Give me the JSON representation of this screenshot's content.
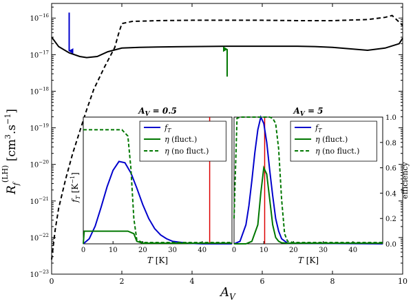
{
  "chart_data": [
    {
      "type": "line",
      "role": "main",
      "xlabel": "A_V",
      "ylabel": "R_f^(LH) [cm^3 . s^-1]",
      "xlim": [
        0,
        10
      ],
      "ylim_log10": [
        -23,
        -15.6
      ],
      "y_scale": "log",
      "x_ticks": [
        0,
        2,
        4,
        6,
        8,
        10
      ],
      "y_ticks_exp": [
        -23,
        -22,
        -21,
        -20,
        -19,
        -18,
        -17,
        -16
      ],
      "grid": false,
      "series": [
        {
          "style": "solid",
          "color": "#000000",
          "x": [
            0,
            0.2,
            0.5,
            0.8,
            1.0,
            1.3,
            1.6,
            2.0,
            2.5,
            3,
            4,
            5,
            6,
            7,
            7.5,
            8,
            8.5,
            9,
            9.5,
            9.9,
            10
          ],
          "y_log10": [
            -16.52,
            -16.78,
            -16.95,
            -17.05,
            -17.08,
            -17.05,
            -16.92,
            -16.82,
            -16.8,
            -16.79,
            -16.78,
            -16.77,
            -16.77,
            -16.77,
            -16.78,
            -16.8,
            -16.84,
            -16.88,
            -16.82,
            -16.7,
            -16.55
          ]
        },
        {
          "style": "dashed",
          "color": "#000000",
          "x": [
            0,
            0.1,
            0.2,
            0.4,
            0.6,
            0.8,
            1.0,
            1.2,
            1.5,
            1.8,
            1.9,
            2.0,
            2.3,
            2.7,
            3,
            4,
            5,
            6,
            7,
            8,
            9,
            9.5,
            9.7,
            10
          ],
          "y_log10": [
            -22.6,
            -21.8,
            -21.2,
            -20.4,
            -19.7,
            -19.1,
            -18.5,
            -17.95,
            -17.35,
            -16.8,
            -16.45,
            -16.15,
            -16.09,
            -16.08,
            -16.07,
            -16.06,
            -16.06,
            -16.06,
            -16.07,
            -16.07,
            -16.04,
            -15.98,
            -15.93,
            -16.2
          ]
        }
      ],
      "annotations": [
        {
          "kind": "arrow",
          "color": "#0000cc",
          "x": 0.5,
          "y_log10_from": -15.85,
          "y_log10_to": -16.9
        },
        {
          "kind": "arrow",
          "color": "#007700",
          "x": 5.0,
          "y_log10_from": -17.6,
          "y_log10_to": -16.85
        }
      ]
    },
    {
      "type": "line",
      "role": "inset-left",
      "title": "A_V = 0.5",
      "title_color": "#0000cc",
      "xlabel": "T [K]",
      "ylabel": "f_T [K^-1]",
      "xlim": [
        0,
        50
      ],
      "ylim": [
        0,
        1
      ],
      "x_ticks": [
        0,
        10,
        20,
        30,
        40
      ],
      "legend_position": "upper-right",
      "vline": {
        "x": 42.5,
        "color": "#dd0000"
      },
      "series": [
        {
          "name": "f_T",
          "color": "#0000cc",
          "style": "solid",
          "x": [
            0,
            2,
            4,
            6,
            8,
            10,
            12,
            14,
            16,
            18,
            20,
            22,
            24,
            26,
            28,
            30,
            35,
            40,
            50
          ],
          "y": [
            0,
            0.04,
            0.14,
            0.29,
            0.45,
            0.58,
            0.65,
            0.64,
            0.56,
            0.44,
            0.31,
            0.2,
            0.12,
            0.07,
            0.04,
            0.02,
            0.005,
            0,
            0
          ]
        },
        {
          "name": "η (fluct.)",
          "color": "#007700",
          "style": "solid",
          "x": [
            0,
            0.3,
            1,
            12,
            15,
            17,
            18,
            20,
            50
          ],
          "y": [
            0,
            0.1,
            0.1,
            0.1,
            0.1,
            0.08,
            0.02,
            0.005,
            0.005
          ]
        },
        {
          "name": "η (no fluct.)",
          "color": "#007700",
          "style": "dashed",
          "x": [
            0,
            0.3,
            1,
            13,
            15,
            16,
            17,
            18,
            20,
            50
          ],
          "y": [
            0.9,
            0.9,
            0.9,
            0.9,
            0.85,
            0.6,
            0.2,
            0.03,
            0.01,
            0.01
          ]
        }
      ]
    },
    {
      "type": "line",
      "role": "inset-right",
      "title": "A_V = 5",
      "title_color": "#007700",
      "xlabel": "T [K]",
      "ylabel": "efficiency",
      "xlim": [
        0,
        50
      ],
      "ylim": [
        0,
        1
      ],
      "x_ticks": [
        0,
        10,
        20,
        30,
        40
      ],
      "y_ticks": [
        "0.0",
        "0.2",
        "0.4",
        "0.6",
        "0.8",
        "1.0"
      ],
      "legend_position": "upper-right",
      "vline": {
        "x": 10.3,
        "color": "#dd0000"
      },
      "series": [
        {
          "name": "f_T",
          "color": "#0000cc",
          "style": "solid",
          "x": [
            0,
            2,
            4,
            5,
            6,
            7,
            8,
            9,
            10,
            11,
            12,
            13,
            14,
            15,
            16,
            18,
            50
          ],
          "y": [
            0,
            0.02,
            0.15,
            0.3,
            0.5,
            0.72,
            0.9,
            1.0,
            0.95,
            0.8,
            0.58,
            0.38,
            0.2,
            0.1,
            0.04,
            0.005,
            0
          ]
        },
        {
          "name": "η (fluct.)",
          "color": "#007700",
          "style": "solid",
          "x": [
            0,
            4,
            6,
            8,
            9,
            10,
            11,
            12,
            13,
            14,
            15,
            16,
            18,
            50
          ],
          "y": [
            0,
            0,
            0.02,
            0.15,
            0.4,
            0.6,
            0.55,
            0.35,
            0.15,
            0.05,
            0.02,
            0.008,
            0.005,
            0.005
          ]
        },
        {
          "name": "η (no fluct.)",
          "color": "#007700",
          "style": "dashed",
          "x": [
            0,
            1,
            2,
            12,
            13,
            14,
            15,
            16,
            17,
            18,
            20,
            50
          ],
          "y": [
            0.2,
            0.99,
            1.0,
            1.0,
            0.99,
            0.95,
            0.75,
            0.35,
            0.08,
            0.02,
            0.01,
            0.01
          ]
        }
      ]
    }
  ]
}
